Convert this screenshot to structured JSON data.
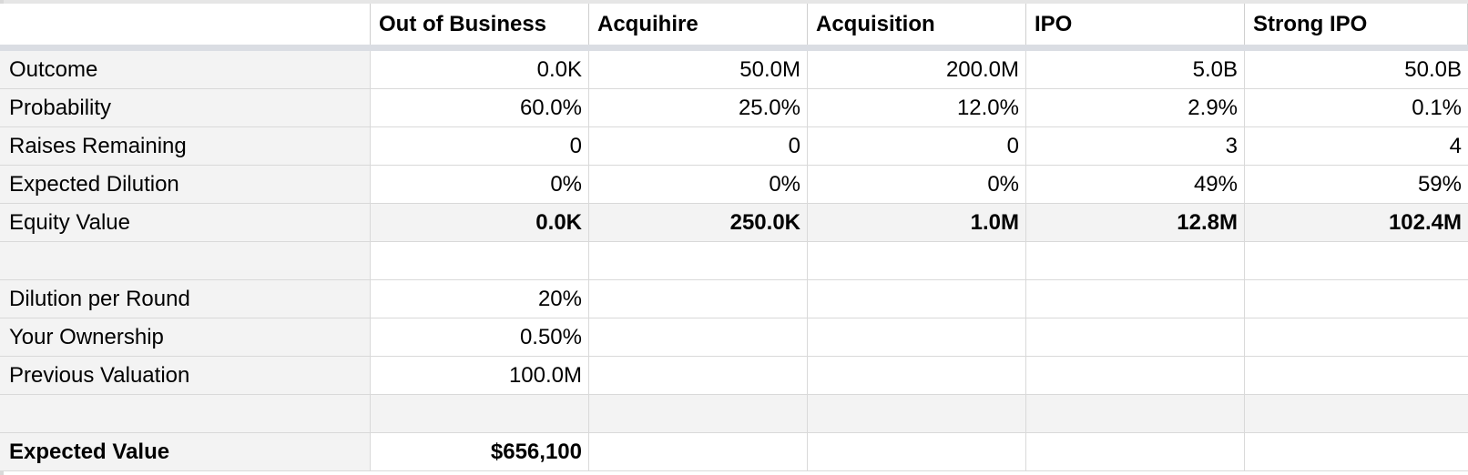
{
  "columns": [
    "Out of Business",
    "Acquihire",
    "Acquisition",
    "IPO",
    "Strong IPO"
  ],
  "rows": {
    "outcome": {
      "label": "Outcome",
      "values": [
        "0.0K",
        "50.0M",
        "200.0M",
        "5.0B",
        "50.0B"
      ]
    },
    "probability": {
      "label": "Probability",
      "values": [
        "60.0%",
        "25.0%",
        "12.0%",
        "2.9%",
        "0.1%"
      ]
    },
    "raises_remaining": {
      "label": "Raises Remaining",
      "values": [
        "0",
        "0",
        "0",
        "3",
        "4"
      ]
    },
    "expected_dilution": {
      "label": "Expected Dilution",
      "values": [
        "0%",
        "0%",
        "0%",
        "49%",
        "59%"
      ]
    },
    "equity_value": {
      "label": "Equity Value",
      "values": [
        "0.0K",
        "250.0K",
        "1.0M",
        "12.8M",
        "102.4M"
      ]
    }
  },
  "inputs": {
    "dilution_per_round": {
      "label": "Dilution per Round",
      "value": "20%"
    },
    "your_ownership": {
      "label": "Your Ownership",
      "value": "0.50%"
    },
    "previous_valuation": {
      "label": "Previous Valuation",
      "value": "100.0M"
    }
  },
  "result": {
    "expected_value": {
      "label": "Expected Value",
      "value": "$656,100"
    }
  },
  "colors": {
    "label_background": "#f3f3f3",
    "grid_line": "#d9d9d9",
    "freeze_bar": "#dadde3"
  }
}
